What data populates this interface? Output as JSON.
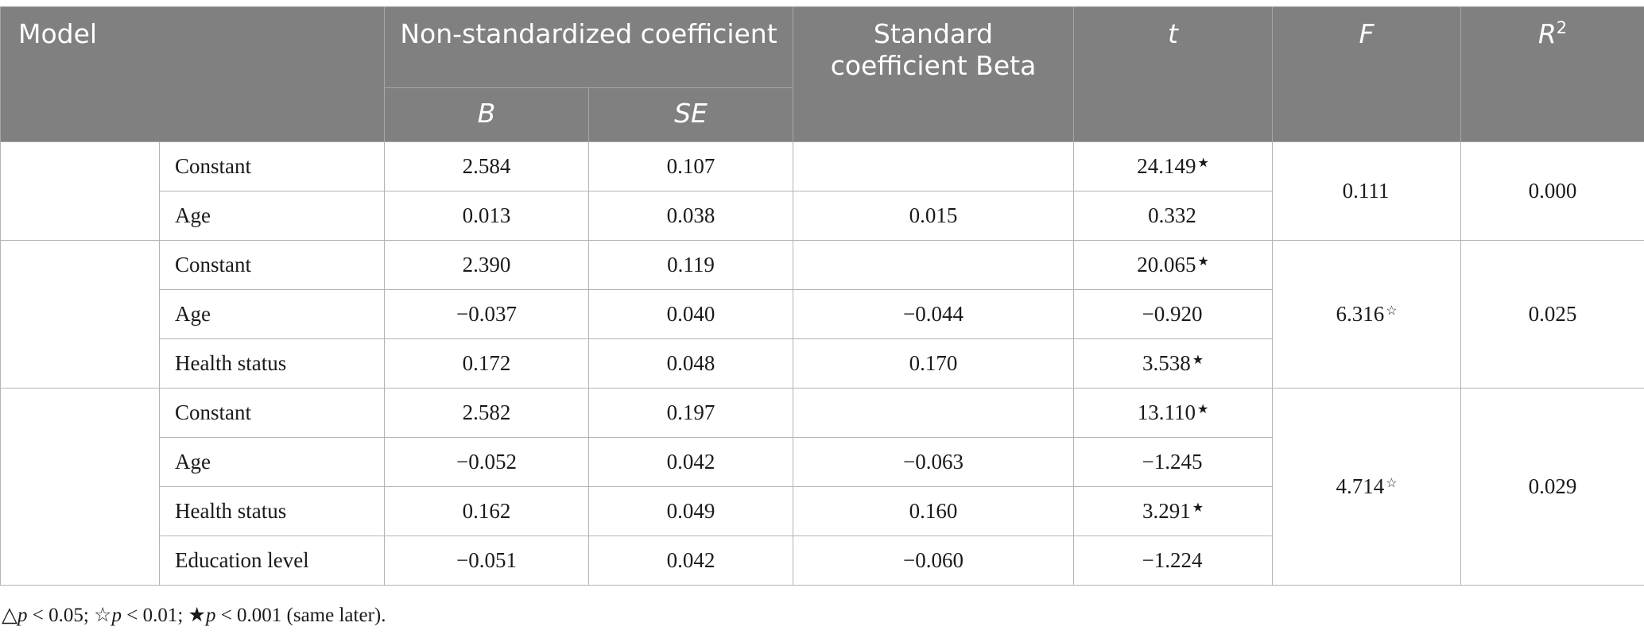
{
  "header": {
    "model": "Model",
    "non_std": "Non-standardized coefficient",
    "b": "B",
    "se": "SE",
    "std_beta": "Standard coefficient Beta",
    "t": "t",
    "f": "F",
    "r_base": "R",
    "r_sup": "2"
  },
  "rows": [
    {
      "var": "Constant",
      "b": "2.584",
      "se": "0.107",
      "beta": "",
      "t": "24.149",
      "t_sig": "★"
    },
    {
      "var": "Age",
      "b": "0.013",
      "se": "0.038",
      "beta": "0.015",
      "t": "0.332",
      "t_sig": ""
    },
    {
      "var": "Constant",
      "b": "2.390",
      "se": "0.119",
      "beta": "",
      "t": "20.065",
      "t_sig": "★"
    },
    {
      "var": "Age",
      "b": "−0.037",
      "se": "0.040",
      "beta": "−0.044",
      "t": "−0.920",
      "t_sig": ""
    },
    {
      "var": "Health status",
      "b": "0.172",
      "se": "0.048",
      "beta": "0.170",
      "t": "3.538",
      "t_sig": "★"
    },
    {
      "var": "Constant",
      "b": "2.582",
      "se": "0.197",
      "beta": "",
      "t": "13.110",
      "t_sig": "★"
    },
    {
      "var": "Age",
      "b": "−0.052",
      "se": "0.042",
      "beta": "−0.063",
      "t": "−1.245",
      "t_sig": ""
    },
    {
      "var": "Health status",
      "b": "0.162",
      "se": "0.049",
      "beta": "0.160",
      "t": "3.291",
      "t_sig": "★"
    },
    {
      "var": "Education level",
      "b": "−0.051",
      "se": "0.042",
      "beta": "−0.060",
      "t": "−1.224",
      "t_sig": ""
    }
  ],
  "models": [
    {
      "f": "0.111",
      "f_sig": "",
      "r2": "0.000"
    },
    {
      "f": "6.316",
      "f_sig": "☆",
      "r2": "0.025"
    },
    {
      "f": "4.714",
      "f_sig": "☆",
      "r2": "0.029"
    }
  ],
  "note": {
    "tri": "△",
    "p1": "p",
    "t1": " < 0.05; ",
    "star_open": "☆",
    "p2": "p",
    "t2": " < 0.01; ",
    "star_filled": "★",
    "p3": "p",
    "t3": " < 0.001 (same later)."
  }
}
